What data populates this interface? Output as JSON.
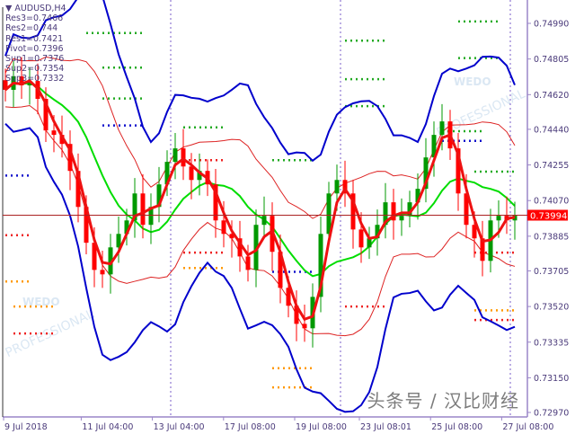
{
  "symbol": "AUDUSD,H4",
  "pivots": [
    {
      "label": "Res3=0.7466"
    },
    {
      "label": "Res2=0.744"
    },
    {
      "label": "Res1=0.7421"
    },
    {
      "label": "Pivot=0.7396"
    },
    {
      "label": "Sup1=0.7376"
    },
    {
      "label": "Sup2=0.7354"
    },
    {
      "label": "Sup3=0.7332"
    }
  ],
  "current_price": "0.73994",
  "watermark": "头条号 / 汉比财经",
  "logo_text": [
    "WEDO",
    "PROFESSIONAL"
  ],
  "colors": {
    "bull": "#009900",
    "bear": "#ff0000",
    "band": "#0000cc",
    "mid": "#00dd00",
    "fast_ma": "#ee1111",
    "axis": "#9a86c8",
    "price_label": "#ff0000"
  },
  "chart_data": {
    "type": "candlestick",
    "ylim": [
      0.7285,
      0.7508
    ],
    "y_ticks": [
      "0.74990",
      "0.74805",
      "0.74620",
      "0.74440",
      "0.74255",
      "0.74070",
      "0.73885",
      "0.73705",
      "0.73520",
      "0.73335",
      "0.73150",
      "0.72970"
    ],
    "x_ticks": [
      {
        "label": "9 Jul 2018",
        "index": 0
      },
      {
        "label": "11 Jul 04:00",
        "index": 12
      },
      {
        "label": "13 Jul 04:00",
        "index": 23
      },
      {
        "label": "17 Jul 08:00",
        "index": 34
      },
      {
        "label": "19 Jul 08:00",
        "index": 45
      },
      {
        "label": "23 Jul 08:01",
        "index": 55
      },
      {
        "label": "25 Jul 08:00",
        "index": 66
      },
      {
        "label": "27 Jul 08:00",
        "index": 77
      }
    ],
    "session_separators": [
      20,
      41,
      62
    ],
    "close": [
      0.74645,
      0.74715,
      0.74668,
      0.74691,
      0.74598,
      0.74434,
      0.74411,
      0.74364,
      0.74224,
      0.74037,
      0.73851,
      0.7371,
      0.73687,
      0.73827,
      0.73897,
      0.73967,
      0.74107,
      0.73944,
      0.74037,
      0.74154,
      0.74271,
      0.74341,
      0.74247,
      0.74177,
      0.74224,
      0.74154,
      0.73967,
      0.73897,
      0.73874,
      0.7378,
      0.7371,
      0.73944,
      0.73991,
      0.73804,
      0.73617,
      0.73524,
      0.7343,
      0.73407,
      0.7357,
      0.73897,
      0.74107,
      0.74177,
      0.74107,
      0.7392,
      0.73827,
      0.73874,
      0.73944,
      0.74061,
      0.73967,
      0.73991,
      0.74061,
      0.74131,
      0.74294,
      0.74411,
      0.74481,
      0.74341,
      0.74107,
      0.73944,
      0.73874,
      0.73757,
      0.73967,
      0.73991,
      0.73967,
      0.73994
    ],
    "pivot_segments": [
      {
        "from": 10,
        "to": 17,
        "price": 0.7494,
        "color": "#22aa22"
      },
      {
        "from": 12,
        "to": 17,
        "price": 0.7476,
        "color": "#22aa22"
      },
      {
        "from": 12,
        "to": 17,
        "price": 0.746,
        "color": "#22aa22"
      },
      {
        "from": 12,
        "to": 17,
        "price": 0.7446,
        "color": "#1111cc"
      },
      {
        "from": 0,
        "to": 3,
        "price": 0.742,
        "color": "#1111cc"
      },
      {
        "from": 0,
        "to": 3,
        "price": 0.7389,
        "color": "#ee2222"
      },
      {
        "from": 0,
        "to": 3,
        "price": 0.7365,
        "color": "#ff9900"
      },
      {
        "from": 1,
        "to": 6,
        "price": 0.7352,
        "color": "#ff9900"
      },
      {
        "from": 1,
        "to": 6,
        "price": 0.7338,
        "color": "#ee2222"
      },
      {
        "from": 22,
        "to": 27,
        "price": 0.7445,
        "color": "#22aa22"
      },
      {
        "from": 22,
        "to": 27,
        "price": 0.7428,
        "color": "#ee2222"
      },
      {
        "from": 22,
        "to": 27,
        "price": 0.738,
        "color": "#ee2222"
      },
      {
        "from": 22,
        "to": 27,
        "price": 0.7372,
        "color": "#ff9900"
      },
      {
        "from": 33,
        "to": 38,
        "price": 0.7428,
        "color": "#22aa22"
      },
      {
        "from": 33,
        "to": 38,
        "price": 0.737,
        "color": "#1111cc"
      },
      {
        "from": 33,
        "to": 38,
        "price": 0.732,
        "color": "#ff9900"
      },
      {
        "from": 33,
        "to": 38,
        "price": 0.731,
        "color": "#ff9900"
      },
      {
        "from": 42,
        "to": 47,
        "price": 0.749,
        "color": "#22aa22"
      },
      {
        "from": 42,
        "to": 47,
        "price": 0.747,
        "color": "#22aa22"
      },
      {
        "from": 42,
        "to": 47,
        "price": 0.7456,
        "color": "#22aa22"
      },
      {
        "from": 42,
        "to": 47,
        "price": 0.7352,
        "color": "#ee2222"
      },
      {
        "from": 54,
        "to": 59,
        "price": 0.7438,
        "color": "#1111cc"
      },
      {
        "from": 54,
        "to": 59,
        "price": 0.7443,
        "color": "#22aa22"
      },
      {
        "from": 56,
        "to": 61,
        "price": 0.75,
        "color": "#22aa22"
      },
      {
        "from": 56,
        "to": 61,
        "price": 0.7481,
        "color": "#22aa22"
      },
      {
        "from": 58,
        "to": 63,
        "price": 0.7422,
        "color": "#22aa22"
      },
      {
        "from": 58,
        "to": 63,
        "price": 0.738,
        "color": "#ee2222"
      },
      {
        "from": 58,
        "to": 63,
        "price": 0.735,
        "color": "#ff9900"
      },
      {
        "from": 58,
        "to": 63,
        "price": 0.7345,
        "color": "#ee2222"
      }
    ]
  }
}
